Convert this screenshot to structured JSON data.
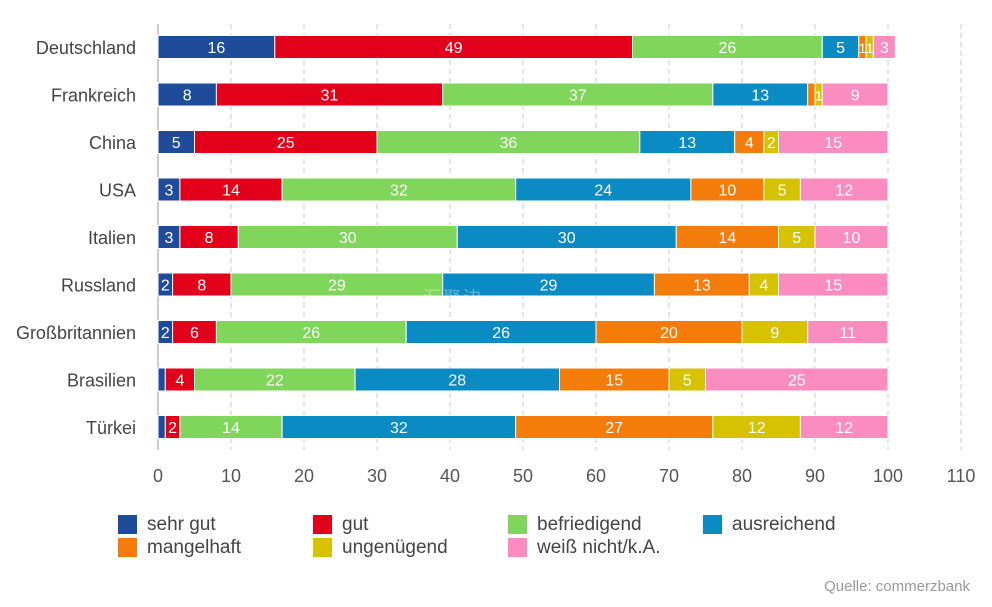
{
  "chart_data": {
    "type": "bar",
    "orientation": "horizontal",
    "stacked": true,
    "categories": [
      "Deutschland",
      "Frankreich",
      "China",
      "USA",
      "Italien",
      "Russland",
      "Großbritannien",
      "Brasilien",
      "Türkei"
    ],
    "series": [
      {
        "name": "sehr gut",
        "color": "#1f4b9b",
        "values": [
          16,
          8,
          5,
          3,
          3,
          2,
          2,
          1,
          1
        ],
        "labels": [
          "16",
          "8",
          "5",
          "3",
          "3",
          "2",
          "2",
          "",
          ""
        ]
      },
      {
        "name": "gut",
        "color": "#e2001a",
        "values": [
          49,
          31,
          25,
          14,
          8,
          8,
          6,
          4,
          2
        ],
        "labels": [
          "49",
          "31",
          "25",
          "14",
          "8",
          "8",
          "6",
          "4",
          "2"
        ]
      },
      {
        "name": "befriedigend",
        "color": "#7fd65a",
        "values": [
          26,
          37,
          36,
          32,
          30,
          29,
          26,
          22,
          14
        ],
        "labels": [
          "26",
          "37",
          "36",
          "32",
          "30",
          "29",
          "26",
          "22",
          "14"
        ]
      },
      {
        "name": "ausreichend",
        "color": "#0a8bc4",
        "values": [
          5,
          13,
          13,
          24,
          30,
          29,
          26,
          28,
          32
        ],
        "labels": [
          "5",
          "13",
          "13",
          "24",
          "30",
          "29",
          "26",
          "28",
          "32"
        ]
      },
      {
        "name": "mangelhaft",
        "color": "#f47c0a",
        "values": [
          1,
          1,
          4,
          10,
          14,
          13,
          20,
          15,
          27
        ],
        "labels": [
          "1",
          "",
          "4",
          "10",
          "14",
          "13",
          "20",
          "15",
          "27"
        ]
      },
      {
        "name": "ungenügend",
        "color": "#d6c200",
        "values": [
          1,
          1,
          2,
          5,
          5,
          4,
          9,
          5,
          12
        ],
        "labels": [
          "1",
          "1",
          "2",
          "5",
          "5",
          "4",
          "9",
          "5",
          "12"
        ]
      },
      {
        "name": "weiß nicht/k.A.",
        "color": "#fb8cc0",
        "values": [
          3,
          9,
          15,
          12,
          10,
          15,
          11,
          25,
          12
        ],
        "labels": [
          "3",
          "9",
          "15",
          "12",
          "10",
          "15",
          "11",
          "25",
          "12"
        ]
      }
    ],
    "xticks": [
      "0",
      "10",
      "20",
      "30",
      "40",
      "50",
      "60",
      "70",
      "80",
      "90",
      "100",
      "110"
    ],
    "xlim": [
      0,
      110
    ],
    "grid": true,
    "legend_position": "bottom"
  },
  "source": "Quelle: commerzbank",
  "watermark": "汇聚边"
}
